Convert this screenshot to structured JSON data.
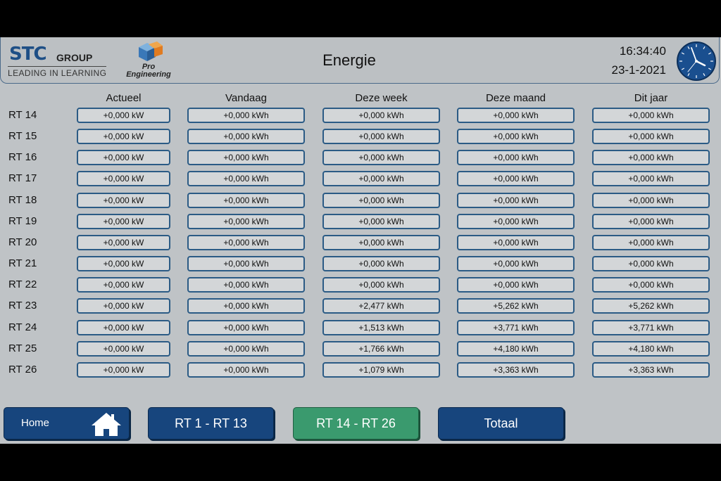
{
  "header": {
    "brand": {
      "stc_mark": "STC",
      "group": "GROUP",
      "tagline": "LEADING IN LEARNING",
      "pro_engineering_line1": "Pro",
      "pro_engineering_line2": "Engineering"
    },
    "title": "Energie",
    "time": "16:34:40",
    "date": "23-1-2021",
    "clock_icon": "analog-clock-icon"
  },
  "table": {
    "columns": [
      "Actueel",
      "Vandaag",
      "Deze week",
      "Deze maand",
      "Dit jaar"
    ],
    "rows": [
      {
        "label": "RT 14",
        "values": [
          "+0,000 kW",
          "+0,000 kWh",
          "+0,000 kWh",
          "+0,000 kWh",
          "+0,000 kWh"
        ]
      },
      {
        "label": "RT 15",
        "values": [
          "+0,000 kW",
          "+0,000 kWh",
          "+0,000 kWh",
          "+0,000 kWh",
          "+0,000 kWh"
        ]
      },
      {
        "label": "RT 16",
        "values": [
          "+0,000 kW",
          "+0,000 kWh",
          "+0,000 kWh",
          "+0,000 kWh",
          "+0,000 kWh"
        ]
      },
      {
        "label": "RT 17",
        "values": [
          "+0,000 kW",
          "+0,000 kWh",
          "+0,000 kWh",
          "+0,000 kWh",
          "+0,000 kWh"
        ]
      },
      {
        "label": "RT 18",
        "values": [
          "+0,000 kW",
          "+0,000 kWh",
          "+0,000 kWh",
          "+0,000 kWh",
          "+0,000 kWh"
        ]
      },
      {
        "label": "RT 19",
        "values": [
          "+0,000 kW",
          "+0,000 kWh",
          "+0,000 kWh",
          "+0,000 kWh",
          "+0,000 kWh"
        ]
      },
      {
        "label": "RT 20",
        "values": [
          "+0,000 kW",
          "+0,000 kWh",
          "+0,000 kWh",
          "+0,000 kWh",
          "+0,000 kWh"
        ]
      },
      {
        "label": "RT 21",
        "values": [
          "+0,000 kW",
          "+0,000 kWh",
          "+0,000 kWh",
          "+0,000 kWh",
          "+0,000 kWh"
        ]
      },
      {
        "label": "RT 22",
        "values": [
          "+0,000 kW",
          "+0,000 kWh",
          "+0,000 kWh",
          "+0,000 kWh",
          "+0,000 kWh"
        ]
      },
      {
        "label": "RT 23",
        "values": [
          "+0,000 kW",
          "+0,000 kWh",
          "+2,477 kWh",
          "+5,262 kWh",
          "+5,262 kWh"
        ]
      },
      {
        "label": "RT 24",
        "values": [
          "+0,000 kW",
          "+0,000 kWh",
          "+1,513 kWh",
          "+3,771 kWh",
          "+3,771 kWh"
        ]
      },
      {
        "label": "RT 25",
        "values": [
          "+0,000 kW",
          "+0,000 kWh",
          "+1,766 kWh",
          "+4,180 kWh",
          "+4,180 kWh"
        ]
      },
      {
        "label": "RT 26",
        "values": [
          "+0,000 kW",
          "+0,000 kWh",
          "+1,079 kWh",
          "+3,363 kWh",
          "+3,363 kWh"
        ]
      }
    ]
  },
  "nav": {
    "home": {
      "label": "Home",
      "icon": "house-icon"
    },
    "rt1_13": "RT 1 - RT 13",
    "rt14_26": "RT 14 - RT 26",
    "totaal": "Totaal"
  },
  "colors": {
    "panel_bg": "#bfc3c6",
    "cell_border": "#2b5b85",
    "nav_blue": "#17457d",
    "nav_active_green": "#3a9a6e"
  }
}
